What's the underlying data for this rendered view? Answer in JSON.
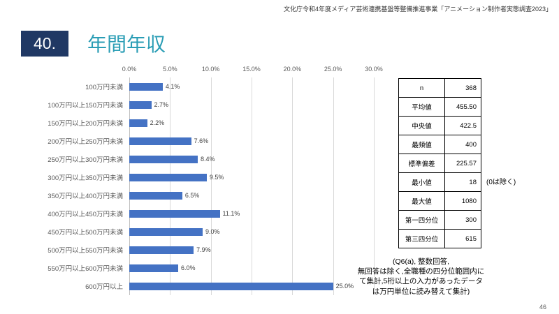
{
  "header": {
    "top_note": "文化庁令和4年度メディア芸術連携基盤等整備推進事業「アニメーション制作者実態調査2023」",
    "slide_number": "40.",
    "title": "年間年収"
  },
  "chart_data": {
    "type": "bar",
    "orientation": "horizontal",
    "title": "年間年収",
    "categories": [
      "100万円未満",
      "100万円以上150万円未満",
      "150万円以上200万円未満",
      "200万円以上250万円未満",
      "250万円以上300万円未満",
      "300万円以上350万円未満",
      "350万円以上400万円未満",
      "400万円以上450万円未満",
      "450万円以上500万円未満",
      "500万円以上550万円未満",
      "550万円以上600万円未満",
      "600万円以上"
    ],
    "values": [
      4.1,
      2.7,
      2.2,
      7.6,
      8.4,
      9.5,
      6.5,
      11.1,
      9.0,
      7.9,
      6.0,
      25.0
    ],
    "value_suffix": "%",
    "xlim": [
      0,
      30
    ],
    "tick_labels": [
      "0.0%",
      "5.0%",
      "10.0%",
      "15.0%",
      "20.0%",
      "25.0%",
      "30.0%"
    ],
    "bar_color": "#4472C4",
    "grid": true,
    "legend": "none"
  },
  "stats_table": {
    "rows": [
      {
        "label": "n",
        "value": "368"
      },
      {
        "label": "平均値",
        "value": "455.50"
      },
      {
        "label": "中央値",
        "value": "422.5"
      },
      {
        "label": "最頻値",
        "value": "400"
      },
      {
        "label": "標準偏差",
        "value": "225.57"
      },
      {
        "label": "最小値",
        "value": "18"
      },
      {
        "label": "最大値",
        "value": "1080"
      },
      {
        "label": "第一四分位",
        "value": "300"
      },
      {
        "label": "第三四分位",
        "value": "615"
      }
    ],
    "side_note": "(0は除く)"
  },
  "footnote": "(Q6(a), 整数回答,\n無回答は除く,全職種の四分位範囲内に\nて集計,5桁以上の入力があったデータ\nは万円単位に読み替えて集計)",
  "footer": {
    "page_number": "46"
  },
  "colors": {
    "accent_teal": "#2A9DB5",
    "navy": "#203864",
    "bar_blue": "#4472C4"
  }
}
